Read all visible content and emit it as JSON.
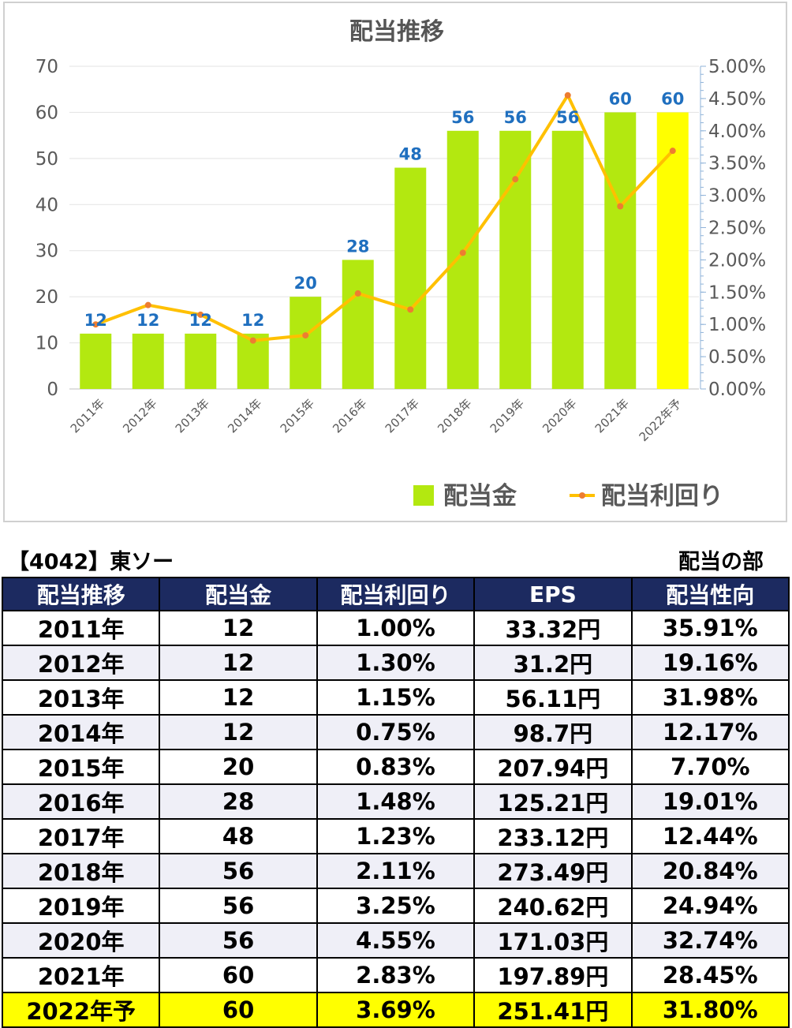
{
  "chart_data": {
    "type": "bar",
    "title": "配当推移",
    "categories": [
      "2011年",
      "2012年",
      "2013年",
      "2014年",
      "2015年",
      "2016年",
      "2017年",
      "2018年",
      "2019年",
      "2020年",
      "2021年",
      "2022年予"
    ],
    "series": [
      {
        "name": "配当金",
        "type": "bar",
        "axis": "left",
        "values": [
          12,
          12,
          12,
          12,
          20,
          28,
          48,
          56,
          56,
          56,
          60,
          60
        ],
        "color": "#b3e810",
        "highlight_color": "#ffff00",
        "highlight_index": 11
      },
      {
        "name": "配当利回り",
        "type": "line",
        "axis": "right",
        "values": [
          1.0,
          1.3,
          1.15,
          0.75,
          0.83,
          1.48,
          1.23,
          2.11,
          3.25,
          4.55,
          2.83,
          3.69
        ],
        "color": "#ffc000",
        "marker_color": "#ed7d31"
      }
    ],
    "y_left": {
      "min": 0,
      "max": 70,
      "ticks": [
        "0",
        "10",
        "20",
        "30",
        "40",
        "50",
        "60",
        "70"
      ]
    },
    "y_right": {
      "min": 0,
      "max": 5,
      "ticks": [
        "0.00%",
        "0.50%",
        "1.00%",
        "1.50%",
        "2.00%",
        "2.50%",
        "3.00%",
        "3.50%",
        "4.00%",
        "4.50%",
        "5.00%"
      ]
    },
    "data_labels": [
      "12",
      "12",
      "12",
      "12",
      "20",
      "28",
      "48",
      "56",
      "56",
      "56",
      "60",
      "60"
    ],
    "legend": {
      "placement": "bottom-right",
      "items": [
        "配当金",
        "配当利回り"
      ]
    },
    "grid": true
  },
  "header": {
    "code_name": "【4042】東ソー",
    "section": "配当の部"
  },
  "table": {
    "headers": [
      "配当推移",
      "配当金",
      "配当利回り",
      "EPS",
      "配当性向"
    ],
    "rows": [
      [
        "2011年",
        "12",
        "1.00%",
        "33.32円",
        "35.91%"
      ],
      [
        "2012年",
        "12",
        "1.30%",
        "31.2円",
        "19.16%"
      ],
      [
        "2013年",
        "12",
        "1.15%",
        "56.11円",
        "31.98%"
      ],
      [
        "2014年",
        "12",
        "0.75%",
        "98.7円",
        "12.17%"
      ],
      [
        "2015年",
        "20",
        "0.83%",
        "207.94円",
        "7.70%"
      ],
      [
        "2016年",
        "28",
        "1.48%",
        "125.21円",
        "19.01%"
      ],
      [
        "2017年",
        "48",
        "1.23%",
        "233.12円",
        "12.44%"
      ],
      [
        "2018年",
        "56",
        "2.11%",
        "273.49円",
        "20.84%"
      ],
      [
        "2019年",
        "56",
        "3.25%",
        "240.62円",
        "24.94%"
      ],
      [
        "2020年",
        "56",
        "4.55%",
        "171.03円",
        "32.74%"
      ],
      [
        "2021年",
        "60",
        "2.83%",
        "197.89円",
        "28.45%"
      ],
      [
        "2022年予",
        "60",
        "3.69%",
        "251.41円",
        "31.80%"
      ]
    ],
    "header_bg": "#1c2a60",
    "highlight_row_color": "#ffff00"
  }
}
